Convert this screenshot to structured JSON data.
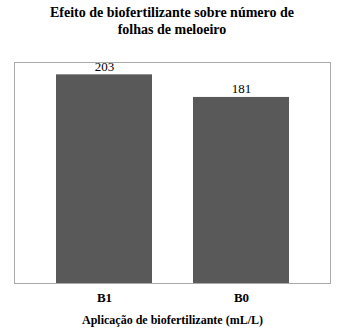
{
  "chart_data": {
    "type": "bar",
    "title": "Efeito de biofertilizante sobre número de\nfolhas de meloeiro",
    "x_label": "Aplicação de biofertilizante (mL/L)",
    "categories": [
      "B1",
      "B0"
    ],
    "values": [
      203,
      181
    ],
    "color": "#595959",
    "ylim": [
      0,
      215
    ],
    "grid": false,
    "data_labels": true,
    "tick_labels": "x"
  }
}
